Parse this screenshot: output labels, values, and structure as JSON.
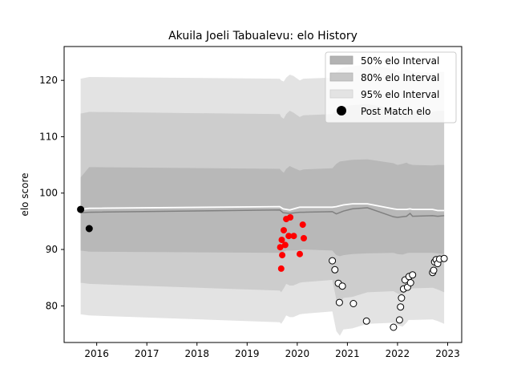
{
  "chart_data": {
    "type": "line",
    "title": "Akuila Joeli Tabualevu: elo History",
    "xlabel": "",
    "ylabel": "elo score",
    "xlim": [
      2015.35,
      2023.28
    ],
    "ylim": [
      73.5,
      126
    ],
    "x_ticks": [
      2016,
      2017,
      2018,
      2019,
      2020,
      2021,
      2022,
      2023
    ],
    "y_ticks": [
      80,
      90,
      100,
      110,
      120
    ],
    "grid": false,
    "legend_position": "top-right",
    "legend": [
      {
        "label": "50% elo Interval",
        "color": "#b3b3b3",
        "kind": "patch"
      },
      {
        "label": "80% elo Interval",
        "color": "#c7c7c7",
        "kind": "patch"
      },
      {
        "label": "95% elo Interval",
        "color": "#e3e3e3",
        "kind": "patch"
      },
      {
        "label": "Post Match elo",
        "color": "#000000",
        "kind": "marker"
      }
    ],
    "band_x": [
      2015.68,
      2015.85,
      2019.65,
      2019.68,
      2019.73,
      2019.78,
      2019.85,
      2019.92,
      2020.05,
      2020.12,
      2020.7,
      2020.78,
      2020.85,
      2020.92,
      2021.1,
      2021.4,
      2021.92,
      2022.0,
      2022.1,
      2022.18,
      2022.22,
      2022.3,
      2022.7,
      2022.8,
      2022.93
    ],
    "bands": {
      "p95": {
        "upper": [
          120.3,
          120.6,
          120.3,
          120.0,
          119.8,
          120.5,
          121.0,
          120.8,
          120.0,
          120.3,
          120.5,
          121.5,
          122.0,
          122.3,
          122.5,
          122.8,
          122.0,
          121.5,
          121.8,
          122.0,
          121.8,
          121.5,
          121.3,
          121.5,
          121.5
        ],
        "lower": [
          78.5,
          78.3,
          77.1,
          76.8,
          77.5,
          78.3,
          78.0,
          78.0,
          78.5,
          78.6,
          79.0,
          75.5,
          74.7,
          75.8,
          76.0,
          76.8,
          77.0,
          76.6,
          76.3,
          77.0,
          77.5,
          77.5,
          77.6,
          77.3,
          76.8
        ]
      },
      "p80": {
        "upper": [
          114.1,
          114.4,
          114.0,
          113.5,
          113.2,
          114.0,
          114.6,
          114.3,
          113.5,
          113.8,
          114.0,
          114.8,
          115.2,
          115.4,
          115.6,
          115.8,
          115.0,
          114.6,
          114.8,
          115.0,
          114.8,
          114.5,
          114.4,
          114.6,
          114.6
        ]
      },
      "p50": {
        "upper": [
          102.8,
          104.6,
          104.3,
          104.0,
          103.6,
          104.3,
          104.8,
          104.5,
          104.0,
          104.2,
          104.4,
          105.2,
          105.6,
          105.7,
          105.9,
          106.0,
          105.3,
          105.0,
          105.2,
          105.4,
          105.2,
          105.0,
          104.9,
          105.0,
          105.0
        ],
        "lower": [
          89.8,
          89.6,
          89.4,
          89.3,
          89.6,
          89.8,
          89.8,
          89.8,
          89.9,
          90.0,
          89.8,
          89.0,
          88.8,
          89.0,
          89.2,
          89.3,
          89.4,
          89.2,
          89.1,
          89.3,
          89.4,
          89.4,
          89.4,
          89.3,
          89.2
        ]
      }
    },
    "median_line": {
      "color": "#808080",
      "x": [
        2015.68,
        2015.85,
        2019.65,
        2019.72,
        2019.85,
        2020.05,
        2020.12,
        2020.7,
        2020.78,
        2020.92,
        2021.1,
        2021.4,
        2021.92,
        2022.0,
        2022.18,
        2022.25,
        2022.3,
        2022.7,
        2022.8,
        2022.93
      ],
      "y": [
        96.5,
        96.6,
        97.0,
        96.5,
        96.4,
        96.6,
        96.6,
        96.7,
        96.3,
        96.8,
        97.2,
        97.4,
        95.8,
        95.7,
        95.9,
        96.4,
        95.9,
        96.0,
        95.9,
        96.0
      ]
    },
    "mean_line": {
      "color": "#ffffff",
      "x": [
        2015.68,
        2015.85,
        2019.65,
        2019.72,
        2019.85,
        2020.05,
        2020.12,
        2020.7,
        2020.78,
        2020.92,
        2021.1,
        2021.4,
        2021.92,
        2022.0,
        2022.18,
        2022.25,
        2022.3,
        2022.7,
        2022.8,
        2022.93
      ],
      "y": [
        97.1,
        97.3,
        97.6,
        97.2,
        97.0,
        97.5,
        97.5,
        97.5,
        97.6,
        97.9,
        98.1,
        98.1,
        97.2,
        97.1,
        97.1,
        97.2,
        97.1,
        97.1,
        96.9,
        96.9
      ]
    },
    "series": [
      {
        "marker_style": "black",
        "fill": "#000000",
        "points": [
          [
            2015.68,
            97.1
          ],
          [
            2015.85,
            93.7
          ]
        ]
      },
      {
        "marker_style": "red",
        "fill": "#ff0000",
        "points": [
          [
            2019.66,
            90.4
          ],
          [
            2019.68,
            86.6
          ],
          [
            2019.69,
            91.7
          ],
          [
            2019.7,
            89.0
          ],
          [
            2019.73,
            93.4
          ],
          [
            2019.76,
            90.8
          ],
          [
            2019.78,
            95.4
          ],
          [
            2019.83,
            92.4
          ],
          [
            2019.86,
            95.7
          ],
          [
            2019.93,
            92.4
          ],
          [
            2020.05,
            89.2
          ],
          [
            2020.11,
            94.4
          ],
          [
            2020.13,
            92.0
          ]
        ]
      },
      {
        "marker_style": "white",
        "fill": "#ffffff",
        "points": [
          [
            2020.7,
            88.0
          ],
          [
            2020.75,
            86.4
          ],
          [
            2020.82,
            84.0
          ],
          [
            2020.84,
            80.6
          ],
          [
            2020.9,
            83.5
          ],
          [
            2021.12,
            80.4
          ],
          [
            2021.38,
            77.3
          ],
          [
            2021.92,
            76.2
          ],
          [
            2022.04,
            77.5
          ],
          [
            2022.06,
            79.8
          ],
          [
            2022.08,
            81.4
          ],
          [
            2022.12,
            83.0
          ],
          [
            2022.15,
            84.6
          ],
          [
            2022.2,
            83.3
          ],
          [
            2022.23,
            85.2
          ],
          [
            2022.26,
            84.1
          ],
          [
            2022.3,
            85.5
          ],
          [
            2022.7,
            85.9
          ],
          [
            2022.72,
            86.3
          ],
          [
            2022.74,
            87.8
          ],
          [
            2022.77,
            88.2
          ],
          [
            2022.8,
            87.5
          ],
          [
            2022.84,
            88.3
          ],
          [
            2022.93,
            88.4
          ]
        ]
      }
    ]
  }
}
